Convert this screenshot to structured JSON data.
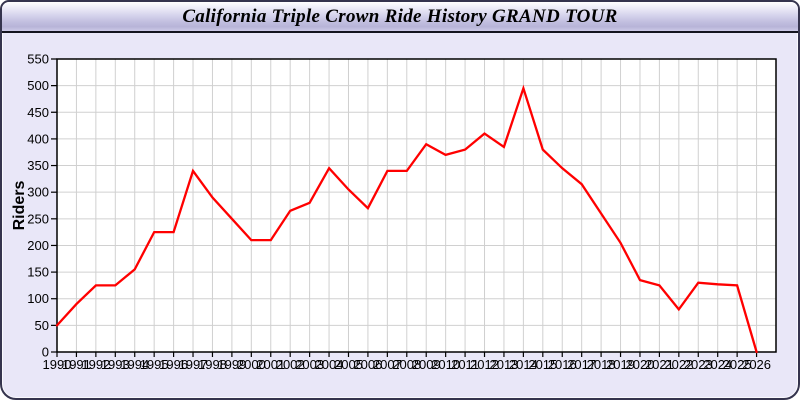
{
  "window": {
    "title": "California Triple Crown Ride History GRAND TOUR"
  },
  "colors": {
    "line": "#ff0000",
    "plot_background": "#ffffff",
    "grid": "#d0d0d0",
    "frame": "#000000",
    "body_background": "#e9e7f8",
    "title_text": "#000000",
    "tick_text": "#000000"
  },
  "chart_data": {
    "type": "line",
    "title": "California Triple Crown Ride History GRAND TOUR",
    "xlabel": "",
    "ylabel": "Riders",
    "x_labels": [
      "1990",
      "1991",
      "1992",
      "1993",
      "1994",
      "1995",
      "1996",
      "1997",
      "1998",
      "1999",
      "2000",
      "2001",
      "2002",
      "2003",
      "2004",
      "2005",
      "2006",
      "2007",
      "2008",
      "2009",
      "2010",
      "2011",
      "2012",
      "2013",
      "2014",
      "2015",
      "2016",
      "2017",
      "2018",
      "2019",
      "2020",
      "2021",
      "2022",
      "2023",
      "2024",
      "2025",
      "2026"
    ],
    "series": [
      {
        "name": "Riders",
        "color": "#ff0000",
        "values": [
          50,
          90,
          125,
          125,
          155,
          225,
          225,
          340,
          290,
          250,
          210,
          210,
          265,
          280,
          345,
          305,
          270,
          340,
          340,
          390,
          370,
          380,
          410,
          385,
          495,
          380,
          345,
          315,
          260,
          205,
          135,
          125,
          80,
          130,
          127,
          125,
          0
        ]
      }
    ],
    "ylim": [
      0,
      550
    ],
    "y_ticks": [
      0,
      50,
      100,
      150,
      200,
      250,
      300,
      350,
      400,
      450,
      500,
      550
    ],
    "grid": true,
    "legend": "none"
  }
}
